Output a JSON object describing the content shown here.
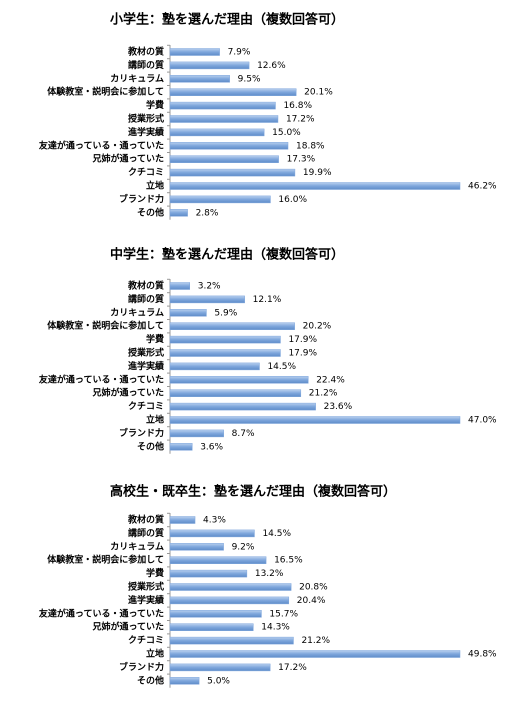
{
  "chart_data": [
    {
      "type": "hbar",
      "title": "小学生：塾を選んだ理由（複数回答可）",
      "categories": [
        "教材の質",
        "講師の質",
        "カリキュラム",
        "体験教室・説明会に参加して",
        "学費",
        "授業形式",
        "進学実績",
        "友達が通っている・通っていた",
        "兄姉が通っていた",
        "クチコミ",
        "立地",
        "ブランド力",
        "その他"
      ],
      "values": [
        7.9,
        12.6,
        9.5,
        20.1,
        16.8,
        17.2,
        15.0,
        18.8,
        17.3,
        19.9,
        46.2,
        16.0,
        2.8
      ],
      "value_labels": [
        "7.9%",
        "12.6%",
        "9.5%",
        "20.1%",
        "16.8%",
        "17.2%",
        "15.0%",
        "18.8%",
        "17.3%",
        "19.9%",
        "46.2%",
        "16.0%",
        "2.8%"
      ],
      "color": "#7ea6dc"
    },
    {
      "type": "hbar",
      "title": "中学生：塾を選んだ理由（複数回答可）",
      "categories": [
        "教材の質",
        "講師の質",
        "カリキュラム",
        "体験教室・説明会に参加して",
        "学費",
        "授業形式",
        "進学実績",
        "友達が通っている・通っていた",
        "兄姉が通っていた",
        "クチコミ",
        "立地",
        "ブランド力",
        "その他"
      ],
      "values": [
        3.2,
        12.1,
        5.9,
        20.2,
        17.9,
        17.9,
        14.5,
        22.4,
        21.2,
        23.6,
        47.0,
        8.7,
        3.6
      ],
      "value_labels": [
        "3.2%",
        "12.1%",
        "5.9%",
        "20.2%",
        "17.9%",
        "17.9%",
        "14.5%",
        "22.4%",
        "21.2%",
        "23.6%",
        "47.0%",
        "8.7%",
        "3.6%"
      ],
      "color": "#7ea6dc"
    },
    {
      "type": "hbar",
      "title": "高校生・既卒生：塾を選んだ理由（複数回答可）",
      "categories": [
        "教材の質",
        "講師の質",
        "カリキュラム",
        "体験教室・説明会に参加して",
        "学費",
        "授業形式",
        "進学実績",
        "友達が通っている・通っていた",
        "兄姉が通っていた",
        "クチコミ",
        "立地",
        "ブランド力",
        "その他"
      ],
      "values": [
        4.3,
        14.5,
        9.2,
        16.5,
        13.2,
        20.8,
        20.4,
        15.7,
        14.3,
        21.2,
        49.8,
        17.2,
        5.0
      ],
      "value_labels": [
        "4.3%",
        "14.5%",
        "9.2%",
        "16.5%",
        "13.2%",
        "20.8%",
        "20.4%",
        "15.7%",
        "14.3%",
        "21.2%",
        "49.8%",
        "17.2%",
        "5.0%"
      ],
      "color": "#7ea6dc"
    }
  ]
}
